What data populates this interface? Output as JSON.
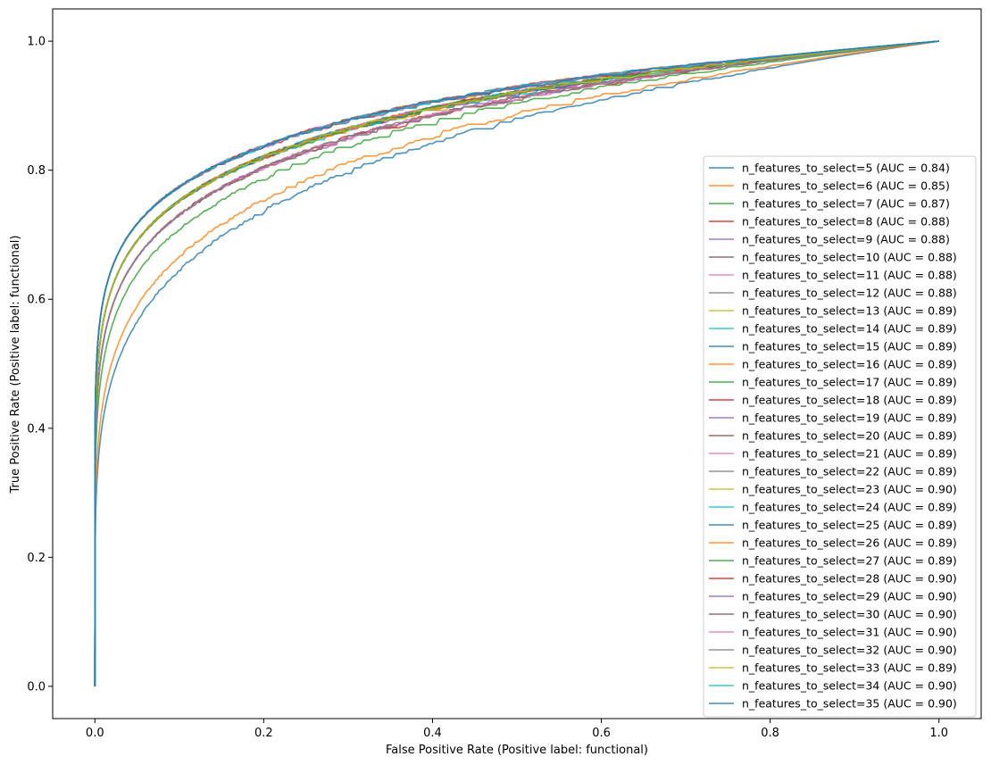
{
  "chart_data": {
    "type": "line",
    "xlabel": "False Positive Rate (Positive label: functional)",
    "ylabel": "True Positive Rate (Positive label: functional)",
    "xlim": [
      -0.05,
      1.05
    ],
    "ylim": [
      -0.05,
      1.05
    ],
    "x_ticks": [
      "0.0",
      "0.2",
      "0.4",
      "0.6",
      "0.8",
      "1.0"
    ],
    "y_ticks": [
      "0.0",
      "0.2",
      "0.4",
      "0.6",
      "0.8",
      "1.0"
    ],
    "grid": false,
    "legend_position": "lower-right",
    "series": [
      {
        "name": "n_features_to_select=5 (AUC = 0.84)",
        "auc": 0.84,
        "color": "#1f77b4"
      },
      {
        "name": "n_features_to_select=6 (AUC = 0.85)",
        "auc": 0.85,
        "color": "#ff7f0e"
      },
      {
        "name": "n_features_to_select=7 (AUC = 0.87)",
        "auc": 0.87,
        "color": "#2ca02c"
      },
      {
        "name": "n_features_to_select=8 (AUC = 0.88)",
        "auc": 0.88,
        "color": "#d62728"
      },
      {
        "name": "n_features_to_select=9 (AUC = 0.88)",
        "auc": 0.88,
        "color": "#9467bd"
      },
      {
        "name": "n_features_to_select=10 (AUC = 0.88)",
        "auc": 0.88,
        "color": "#8c564b"
      },
      {
        "name": "n_features_to_select=11 (AUC = 0.88)",
        "auc": 0.88,
        "color": "#e377c2"
      },
      {
        "name": "n_features_to_select=12 (AUC = 0.88)",
        "auc": 0.88,
        "color": "#7f7f7f"
      },
      {
        "name": "n_features_to_select=13 (AUC = 0.89)",
        "auc": 0.89,
        "color": "#bcbd22"
      },
      {
        "name": "n_features_to_select=14 (AUC = 0.89)",
        "auc": 0.89,
        "color": "#17becf"
      },
      {
        "name": "n_features_to_select=15 (AUC = 0.89)",
        "auc": 0.89,
        "color": "#1f77b4"
      },
      {
        "name": "n_features_to_select=16 (AUC = 0.89)",
        "auc": 0.89,
        "color": "#ff7f0e"
      },
      {
        "name": "n_features_to_select=17 (AUC = 0.89)",
        "auc": 0.89,
        "color": "#2ca02c"
      },
      {
        "name": "n_features_to_select=18 (AUC = 0.89)",
        "auc": 0.89,
        "color": "#d62728"
      },
      {
        "name": "n_features_to_select=19 (AUC = 0.89)",
        "auc": 0.89,
        "color": "#9467bd"
      },
      {
        "name": "n_features_to_select=20 (AUC = 0.89)",
        "auc": 0.89,
        "color": "#8c564b"
      },
      {
        "name": "n_features_to_select=21 (AUC = 0.89)",
        "auc": 0.89,
        "color": "#e377c2"
      },
      {
        "name": "n_features_to_select=22 (AUC = 0.89)",
        "auc": 0.89,
        "color": "#7f7f7f"
      },
      {
        "name": "n_features_to_select=23 (AUC = 0.90)",
        "auc": 0.9,
        "color": "#bcbd22"
      },
      {
        "name": "n_features_to_select=24 (AUC = 0.89)",
        "auc": 0.89,
        "color": "#17becf"
      },
      {
        "name": "n_features_to_select=25 (AUC = 0.89)",
        "auc": 0.89,
        "color": "#1f77b4"
      },
      {
        "name": "n_features_to_select=26 (AUC = 0.89)",
        "auc": 0.89,
        "color": "#ff7f0e"
      },
      {
        "name": "n_features_to_select=27 (AUC = 0.89)",
        "auc": 0.89,
        "color": "#2ca02c"
      },
      {
        "name": "n_features_to_select=28 (AUC = 0.90)",
        "auc": 0.9,
        "color": "#d62728"
      },
      {
        "name": "n_features_to_select=29 (AUC = 0.90)",
        "auc": 0.9,
        "color": "#9467bd"
      },
      {
        "name": "n_features_to_select=30 (AUC = 0.90)",
        "auc": 0.9,
        "color": "#8c564b"
      },
      {
        "name": "n_features_to_select=31 (AUC = 0.90)",
        "auc": 0.9,
        "color": "#e377c2"
      },
      {
        "name": "n_features_to_select=32 (AUC = 0.90)",
        "auc": 0.9,
        "color": "#7f7f7f"
      },
      {
        "name": "n_features_to_select=33 (AUC = 0.89)",
        "auc": 0.89,
        "color": "#bcbd22"
      },
      {
        "name": "n_features_to_select=34 (AUC = 0.90)",
        "auc": 0.9,
        "color": "#17becf"
      },
      {
        "name": "n_features_to_select=35 (AUC = 0.90)",
        "auc": 0.9,
        "color": "#1f77b4"
      }
    ]
  }
}
